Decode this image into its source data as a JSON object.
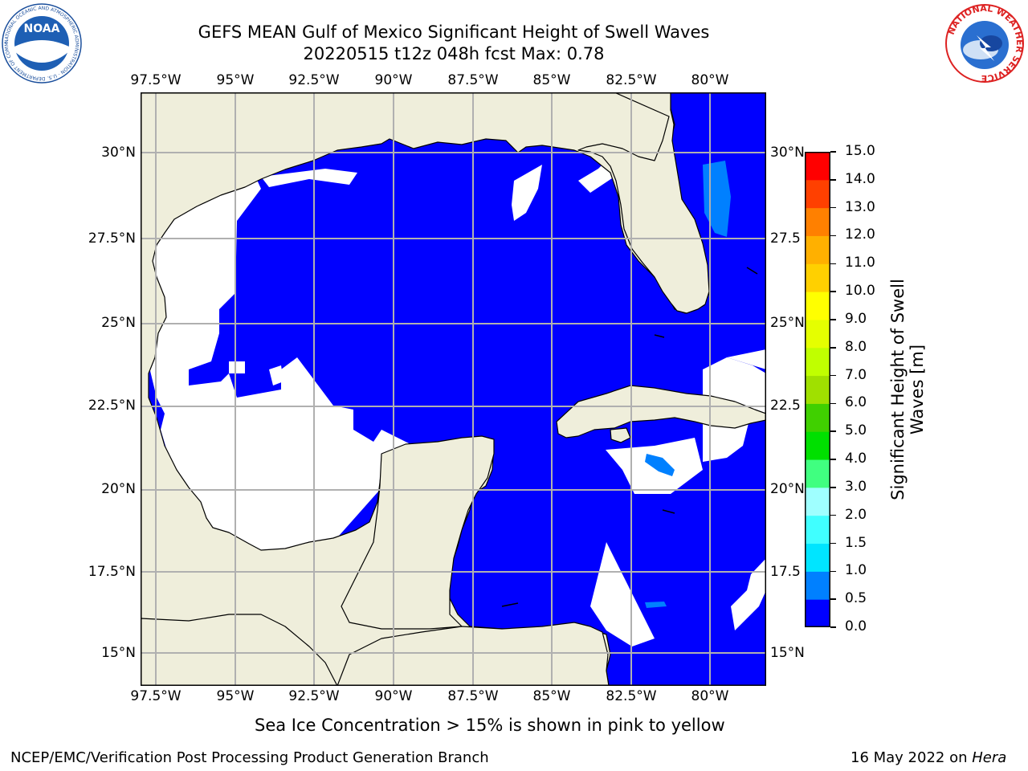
{
  "header": {
    "title_line1": "GEFS MEAN Gulf of Mexico Significant Height of Swell Waves",
    "title_line2": "20220515 t12z 048h fcst   Max: 0.78"
  },
  "map": {
    "lon_ticks_top": [
      "97.5°W",
      "95°W",
      "92.5°W",
      "90°W",
      "87.5°W",
      "85°W",
      "82.5°W",
      "80°W"
    ],
    "lon_ticks_bottom": [
      "97.5°W",
      "95°W",
      "92.5°W",
      "90°W",
      "87.5°W",
      "85°W",
      "82.5°W",
      "80°W"
    ],
    "lat_ticks_left": [
      "30°N",
      "27.5°N",
      "25°N",
      "22.5°N",
      "20°N",
      "17.5°N",
      "15°N"
    ],
    "lat_ticks_right": [
      "30°N",
      "27.5",
      "25°N",
      "22.5",
      "20°N",
      "17.5",
      "15°N"
    ],
    "colors": {
      "land": "#efeedb",
      "ocean_low": "#0000ff",
      "ocean_mid": "#0080ff",
      "no_data": "#ffffff",
      "grid": "#b0b0b0"
    }
  },
  "colorbar": {
    "label": "Significant Height of Swell Waves [m]",
    "levels": [
      "0.0",
      "0.5",
      "1.0",
      "1.5",
      "2.0",
      "3.0",
      "4.0",
      "5.0",
      "6.0",
      "7.0",
      "8.0",
      "9.0",
      "10.0",
      "11.0",
      "12.0",
      "13.0",
      "14.0",
      "15.0"
    ],
    "colors": [
      "#0000ff",
      "#0080ff",
      "#00e5ff",
      "#40ffff",
      "#9fffff",
      "#40ff80",
      "#00e000",
      "#40d000",
      "#a0e000",
      "#c0ff00",
      "#e5ff00",
      "#ffff00",
      "#ffd000",
      "#ffb000",
      "#ff8000",
      "#ff4000",
      "#ff0000"
    ]
  },
  "sea_ice_note": "Sea Ice Concentration > 15% is shown in pink to yellow",
  "footer": {
    "left": "NCEP/EMC/Verification Post Processing Product Generation Branch",
    "right_date": "16 May 2022 on ",
    "right_host": "Hera"
  },
  "logos": {
    "noaa": {
      "text": "NOAA",
      "ring_text": "NATIONAL OCEANIC AND ATMOSPHERIC ADMINISTRATION · U.S. DEPARTMENT OF COMMERCE"
    },
    "nws": {
      "ring_text": "NATIONAL WEATHER SERVICE"
    }
  }
}
